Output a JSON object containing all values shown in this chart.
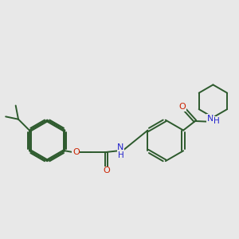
{
  "background_color": "#e8e8e8",
  "bond_color": "#2d5a2d",
  "oxygen_color": "#cc2200",
  "nitrogen_color": "#2222cc",
  "line_width": 1.4,
  "fig_size": [
    3.0,
    3.0
  ],
  "dpi": 100,
  "xlim": [
    0,
    10
  ],
  "ylim": [
    0,
    10
  ]
}
